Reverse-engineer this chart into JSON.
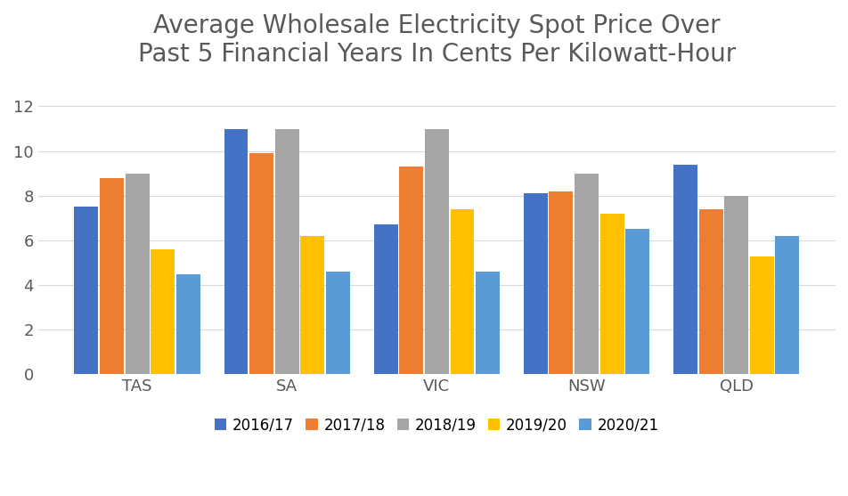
{
  "title": "Average Wholesale Electricity Spot Price Over\nPast 5 Financial Years In Cents Per Kilowatt-Hour",
  "categories": [
    "TAS",
    "SA",
    "VIC",
    "NSW",
    "QLD"
  ],
  "series": {
    "2016/17": [
      7.5,
      11.0,
      6.7,
      8.1,
      9.4
    ],
    "2017/18": [
      8.8,
      9.9,
      9.3,
      8.2,
      7.4
    ],
    "2018/19": [
      9.0,
      11.0,
      11.0,
      9.0,
      8.0
    ],
    "2019/20": [
      5.6,
      6.2,
      7.4,
      7.2,
      5.3
    ],
    "2020/21": [
      4.5,
      4.6,
      4.6,
      6.5,
      6.2
    ]
  },
  "colors": {
    "2016/17": "#4472C4",
    "2017/18": "#ED7D31",
    "2018/19": "#A5A5A5",
    "2019/20": "#FFC000",
    "2020/21": "#5B9BD5"
  },
  "ylim": [
    0,
    13
  ],
  "yticks": [
    0,
    2,
    4,
    6,
    8,
    10,
    12
  ],
  "title_fontsize": 20,
  "tick_fontsize": 13,
  "legend_fontsize": 12,
  "background_color": "#FFFFFF",
  "grid_color": "#D9D9D9"
}
